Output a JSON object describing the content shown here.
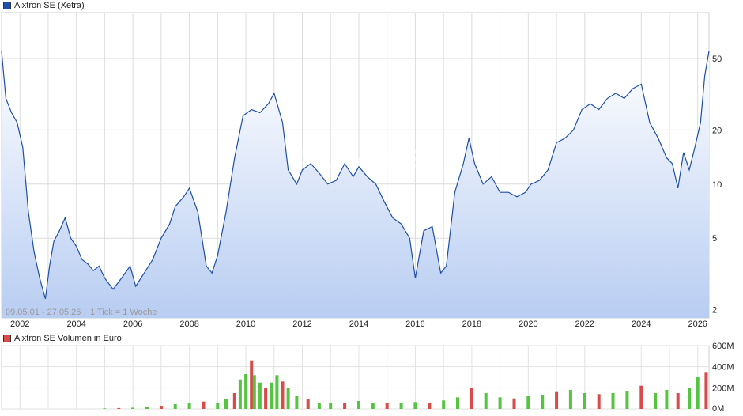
{
  "price_chart": {
    "legend_label": "Aixtron SE (Xetra)",
    "series_color": "#1f4fa8",
    "fill_top_color": "#ffffff",
    "fill_bottom_color": "#b8cdf2",
    "date_range_label": "09.05.01 - 27.05.26",
    "tick_info_label": "1 Tick = 1 Woche",
    "watermark": "ARIVA.DE"
  },
  "volume_chart": {
    "legend_label": "Aixtron SE Volumen in Euro",
    "up_color": "#55c441",
    "down_color": "#d94b4b"
  },
  "chart_data": [
    {
      "type": "area",
      "title": "Aixtron SE (Xetra)",
      "scale": "log",
      "ylim": [
        1.8,
        90
      ],
      "xlim": [
        2001.35,
        2026.4
      ],
      "yticks": [
        2,
        5,
        10,
        20,
        50
      ],
      "ytick_labels": [
        "2",
        "5",
        "10",
        "20",
        "50"
      ],
      "xticks": [
        2002,
        2004,
        2006,
        2008,
        2010,
        2012,
        2014,
        2016,
        2018,
        2020,
        2022,
        2024,
        2026
      ],
      "xtick_labels": [
        "2002",
        "2004",
        "2006",
        "2008",
        "2010",
        "2012",
        "2014",
        "2016",
        "2018",
        "2020",
        "2022",
        "2024",
        "2026"
      ],
      "grid": true,
      "x": [
        2001.35,
        2001.5,
        2001.7,
        2001.9,
        2002.1,
        2002.3,
        2002.5,
        2002.7,
        2002.9,
        2003.05,
        2003.2,
        2003.4,
        2003.6,
        2003.8,
        2004.0,
        2004.2,
        2004.4,
        2004.6,
        2004.8,
        2005.0,
        2005.3,
        2005.6,
        2005.9,
        2006.1,
        2006.4,
        2006.7,
        2007.0,
        2007.3,
        2007.5,
        2007.8,
        2008.0,
        2008.3,
        2008.6,
        2008.8,
        2009.0,
        2009.3,
        2009.6,
        2009.9,
        2010.2,
        2010.5,
        2010.8,
        2011.0,
        2011.3,
        2011.5,
        2011.8,
        2012.0,
        2012.3,
        2012.6,
        2012.9,
        2013.2,
        2013.5,
        2013.8,
        2014.0,
        2014.3,
        2014.6,
        2014.9,
        2015.2,
        2015.5,
        2015.8,
        2016.0,
        2016.3,
        2016.6,
        2016.9,
        2017.1,
        2017.4,
        2017.7,
        2017.9,
        2018.1,
        2018.4,
        2018.7,
        2019.0,
        2019.3,
        2019.6,
        2019.9,
        2020.1,
        2020.4,
        2020.7,
        2021.0,
        2021.3,
        2021.6,
        2021.9,
        2022.2,
        2022.5,
        2022.8,
        2023.1,
        2023.4,
        2023.7,
        2024.0,
        2024.3,
        2024.6,
        2024.9,
        2025.1,
        2025.3,
        2025.5,
        2025.7,
        2025.9,
        2026.1,
        2026.25,
        2026.4
      ],
      "y": [
        55,
        30,
        25,
        22,
        16,
        7.0,
        4.2,
        3.0,
        2.3,
        3.5,
        4.8,
        5.5,
        6.5,
        5.0,
        4.5,
        3.8,
        3.6,
        3.3,
        3.5,
        3.0,
        2.6,
        3.0,
        3.5,
        2.7,
        3.2,
        3.8,
        5.0,
        6.0,
        7.5,
        8.5,
        9.5,
        7.0,
        3.5,
        3.2,
        4.0,
        7.0,
        14.0,
        24.0,
        26.0,
        25.0,
        28.0,
        32.0,
        22.0,
        12.0,
        10.0,
        12.0,
        13.0,
        11.5,
        10.0,
        10.5,
        13.0,
        11.0,
        12.5,
        11.0,
        10.0,
        8.0,
        6.5,
        6.0,
        5.0,
        3.0,
        5.5,
        5.8,
        3.2,
        3.5,
        9.0,
        13.0,
        18.0,
        13.0,
        10.0,
        11.0,
        9.0,
        9.0,
        8.5,
        9.0,
        10.0,
        10.5,
        12.0,
        17.0,
        18.0,
        20.0,
        26.0,
        28.0,
        26.0,
        30.0,
        32.0,
        30.0,
        34.0,
        36.0,
        22.0,
        18.0,
        14.0,
        13.0,
        9.5,
        15.0,
        12.0,
        16.0,
        22.0,
        40.0,
        55.0
      ]
    },
    {
      "type": "bar",
      "title": "Aixtron SE Volumen in Euro",
      "ylim": [
        0,
        600
      ],
      "yticks": [
        0,
        200,
        400,
        600
      ],
      "ytick_labels": [
        "0M",
        "200M",
        "400M",
        "600M"
      ],
      "x": [
        2005.0,
        2005.5,
        2006.0,
        2006.5,
        2007.0,
        2007.5,
        2008.0,
        2008.5,
        2009.0,
        2009.3,
        2009.6,
        2009.8,
        2010.0,
        2010.2,
        2010.3,
        2010.5,
        2010.7,
        2010.9,
        2011.1,
        2011.3,
        2011.5,
        2011.8,
        2012.2,
        2012.6,
        2013.0,
        2013.5,
        2014.0,
        2014.5,
        2015.0,
        2015.5,
        2016.0,
        2016.5,
        2017.0,
        2017.5,
        2018.0,
        2018.5,
        2019.0,
        2019.5,
        2020.0,
        2020.5,
        2021.0,
        2021.5,
        2022.0,
        2022.5,
        2023.0,
        2023.5,
        2024.0,
        2024.5,
        2024.9,
        2025.3,
        2025.7,
        2026.0,
        2026.3
      ],
      "values": [
        5,
        8,
        12,
        18,
        30,
        45,
        60,
        70,
        60,
        90,
        150,
        280,
        330,
        460,
        320,
        250,
        200,
        250,
        320,
        260,
        200,
        120,
        90,
        60,
        55,
        60,
        75,
        60,
        60,
        55,
        65,
        60,
        80,
        110,
        200,
        150,
        110,
        100,
        120,
        130,
        160,
        180,
        150,
        140,
        150,
        170,
        220,
        150,
        180,
        150,
        200,
        300,
        350
      ]
    }
  ]
}
